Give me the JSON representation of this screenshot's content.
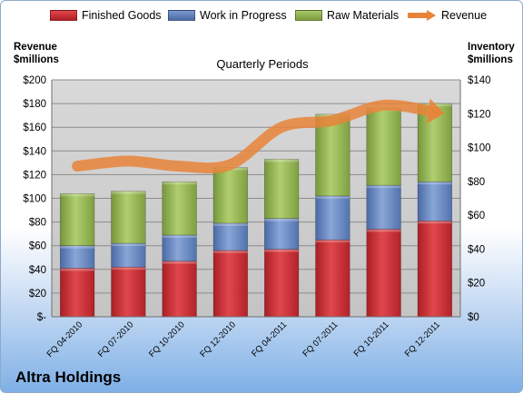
{
  "chart_data": {
    "type": "bar",
    "stacked": true,
    "subtitle": "Quarterly Periods",
    "company": "Altra Holdings",
    "ylabel_left": [
      "Revenue",
      "$millions"
    ],
    "ylabel_right": [
      "Inventory",
      "$millions"
    ],
    "categories": [
      "FQ 04-2010",
      "FQ 07-2010",
      "FQ 10-2010",
      "FQ 12-2010",
      "FQ 04-2011",
      "FQ 07-2011",
      "FQ 10-2011",
      "FQ 12-2011"
    ],
    "ylim_left": [
      0,
      200
    ],
    "ylim_right": [
      0,
      140
    ],
    "yticks_left": [
      "$-",
      "$20",
      "$40",
      "$60",
      "$80",
      "$100",
      "$120",
      "$140",
      "$160",
      "$180",
      "$200"
    ],
    "yticks_right": [
      "$0",
      "$20",
      "$40",
      "$60",
      "$80",
      "$100",
      "$120",
      "$140"
    ],
    "grid": true,
    "legend_position": "top",
    "series": [
      {
        "name": "Finished Goods",
        "type": "bar",
        "axis": "left",
        "color": "#c0282e",
        "values": [
          41,
          42,
          47,
          56,
          57,
          65,
          74,
          81
        ]
      },
      {
        "name": "Work in Progress",
        "type": "bar",
        "axis": "left",
        "color": "#5a7db8",
        "values": [
          19,
          20,
          22,
          23,
          26,
          37,
          37,
          33
        ]
      },
      {
        "name": "Raw Materials",
        "type": "bar",
        "axis": "left",
        "color": "#8db04c",
        "values": [
          44,
          44,
          45,
          47,
          50,
          69,
          65,
          66
        ]
      },
      {
        "name": "Revenue",
        "type": "line",
        "axis": "right",
        "color": "#e8843a",
        "values": [
          89,
          92,
          89,
          90,
          112,
          116,
          125,
          121
        ]
      }
    ]
  }
}
